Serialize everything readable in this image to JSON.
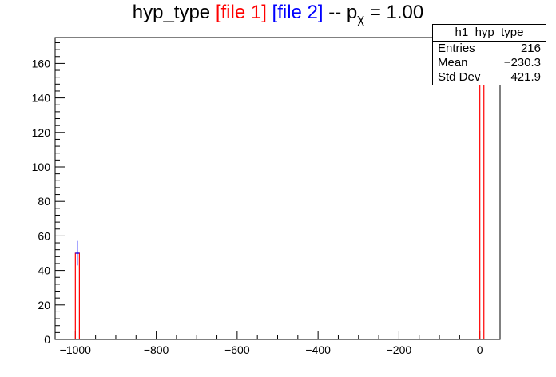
{
  "title": {
    "prefix": "hyp_type ",
    "file1": "[file 1]",
    "file2": "[file 2]",
    "suffix_a": " -- p",
    "subscript": "χ",
    "suffix_b": " = 1.00"
  },
  "stats": {
    "name": "h1_hyp_type",
    "rows": [
      {
        "label": "Entries",
        "value": "216"
      },
      {
        "label": "Mean",
        "value": "−230.3"
      },
      {
        "label": "Std Dev",
        "value": "421.9"
      }
    ]
  },
  "colors": {
    "file1": "#ff0000",
    "file2": "#0000ff",
    "axis": "#000000"
  },
  "chart_data": {
    "type": "bar",
    "xlim": [
      -1050,
      50
    ],
    "ylim": [
      0,
      175
    ],
    "x_ticks": [
      -1000,
      -800,
      -600,
      -400,
      -200,
      0
    ],
    "x_tick_labels": [
      "−1000",
      "−800",
      "−600",
      "−400",
      "−200",
      "0"
    ],
    "y_ticks": [
      0,
      20,
      40,
      60,
      80,
      100,
      120,
      140,
      160
    ],
    "series": [
      {
        "name": "file 1",
        "color": "#ff0000",
        "bins": [
          {
            "x0": -1000,
            "x1": -990,
            "value": 50
          },
          {
            "x0": 0,
            "x1": 10,
            "value": 166
          }
        ]
      },
      {
        "name": "file 2",
        "color": "#0000ff",
        "bins": [
          {
            "x0": -1000,
            "x1": -990,
            "value": 50,
            "err": 7.1
          },
          {
            "x0": 0,
            "x1": 10,
            "value": 166,
            "err": 12.9
          }
        ]
      }
    ]
  }
}
